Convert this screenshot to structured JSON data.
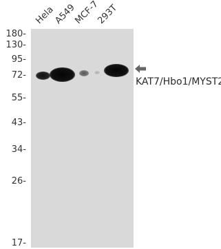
{
  "lanes": [
    "Hela",
    "A549",
    "MCF-7",
    "293T"
  ],
  "markers": [
    "180-",
    "130-",
    "95-",
    "72-",
    "55-",
    "43-",
    "34-",
    "26-",
    "17-"
  ],
  "target_label": "KAT7/Hbo1/MYST2",
  "colors": {
    "membrane": "#d9d9d9",
    "band": "#111111",
    "text": "#333333",
    "arrow": "#666666"
  }
}
